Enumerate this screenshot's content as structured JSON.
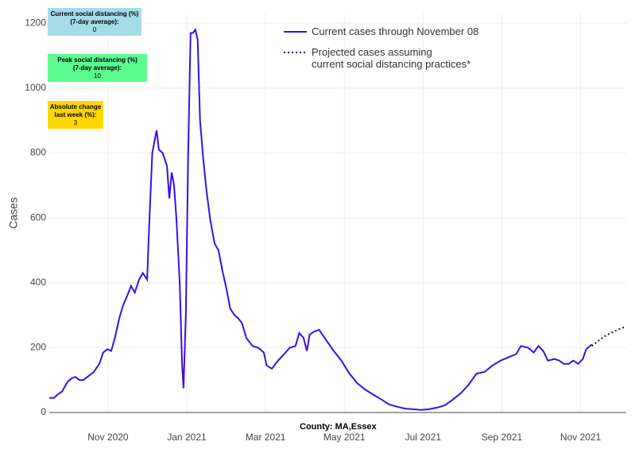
{
  "chart_data": {
    "type": "line",
    "y_label": "Cases",
    "x_label": "County: MA,Essex",
    "xlim": [
      2020.709,
      2021.93
    ],
    "ylim": [
      0,
      1230
    ],
    "xticks": [
      {
        "value": 2020.8333,
        "label": "Nov 2020"
      },
      {
        "value": 2021.0,
        "label": "Jan 2021"
      },
      {
        "value": 2021.1667,
        "label": "Mar 2021"
      },
      {
        "value": 2021.3333,
        "label": "May 2021"
      },
      {
        "value": 2021.5,
        "label": "Jul 2021"
      },
      {
        "value": 2021.6667,
        "label": "Sep 2021"
      },
      {
        "value": 2021.8333,
        "label": "Nov 2021"
      }
    ],
    "yticks": [
      0,
      200,
      400,
      600,
      800,
      1000,
      1200
    ],
    "grid": true,
    "annotations": [
      {
        "label": "Current social distancing (%)\n(7-day average):",
        "value": 0,
        "color": "#a6dbe8"
      },
      {
        "label": "Peak social distancing (%)\n(7-day average):",
        "value": 10,
        "color": "#5cfb8f"
      },
      {
        "label": "Absolute change\nlast week (%):",
        "value": 3,
        "color": "#ffd700"
      }
    ],
    "series": [
      {
        "name": "Current cases through November 08",
        "color": "#3d0ce8",
        "dash": "solid",
        "x": [
          2020.709,
          2020.719,
          2020.726,
          2020.736,
          2020.748,
          2020.756,
          2020.764,
          2020.773,
          2020.781,
          2020.79,
          2020.803,
          2020.815,
          2020.823,
          2020.832,
          2020.84,
          2020.848,
          2020.857,
          2020.865,
          2020.874,
          2020.882,
          2020.89,
          2020.899,
          2020.907,
          2020.916,
          2020.921,
          2020.927,
          2020.936,
          2020.941,
          2020.949,
          2020.958,
          2020.963,
          2020.968,
          2020.973,
          2020.978,
          2020.985,
          2020.99,
          2020.993,
          2020.998,
          2021.003,
          2021.008,
          2021.013,
          2021.018,
          2021.023,
          2021.028,
          2021.035,
          2021.042,
          2021.05,
          2021.059,
          2021.067,
          2021.075,
          2021.084,
          2021.092,
          2021.101,
          2021.109,
          2021.117,
          2021.126,
          2021.139,
          2021.151,
          2021.163,
          2021.169,
          2021.18,
          2021.193,
          2021.206,
          2021.218,
          2021.23,
          2021.238,
          2021.247,
          2021.254,
          2021.26,
          2021.27,
          2021.28,
          2021.294,
          2021.311,
          2021.327,
          2021.344,
          2021.361,
          2021.378,
          2021.395,
          2021.412,
          2021.428,
          2021.445,
          2021.462,
          2021.479,
          2021.496,
          2021.512,
          2021.529,
          2021.546,
          2021.563,
          2021.58,
          2021.596,
          2021.613,
          2021.63,
          2021.647,
          2021.664,
          2021.68,
          2021.697,
          2021.707,
          2021.722,
          2021.734,
          2021.744,
          2021.754,
          2021.764,
          2021.778,
          2021.788,
          2021.798,
          2021.808,
          2021.818,
          2021.828,
          2021.838,
          2021.845,
          2021.857
        ],
        "values": [
          45,
          45,
          55,
          65,
          95,
          105,
          110,
          100,
          100,
          110,
          125,
          150,
          185,
          195,
          190,
          230,
          290,
          330,
          360,
          390,
          370,
          410,
          430,
          410,
          600,
          800,
          870,
          810,
          800,
          760,
          660,
          740,
          700,
          600,
          400,
          150,
          75,
          300,
          800,
          1170,
          1170,
          1180,
          1150,
          900,
          780,
          680,
          590,
          520,
          500,
          440,
          380,
          320,
          300,
          290,
          275,
          230,
          205,
          200,
          185,
          145,
          135,
          160,
          180,
          200,
          205,
          245,
          230,
          190,
          240,
          250,
          255,
          225,
          190,
          160,
          120,
          90,
          70,
          55,
          40,
          25,
          18,
          12,
          10,
          8,
          10,
          15,
          22,
          40,
          60,
          85,
          120,
          125,
          145,
          160,
          170,
          180,
          205,
          200,
          185,
          205,
          190,
          160,
          165,
          160,
          150,
          150,
          160,
          150,
          165,
          195,
          210
        ]
      },
      {
        "name": "Projected cases assuming\ncurrent social distancing practices*",
        "color": "#1c0a6e",
        "dash": "dot",
        "x": [
          2021.857,
          2021.874,
          2021.89,
          2021.907,
          2021.929
        ],
        "values": [
          205,
          225,
          240,
          252,
          265
        ]
      }
    ]
  }
}
